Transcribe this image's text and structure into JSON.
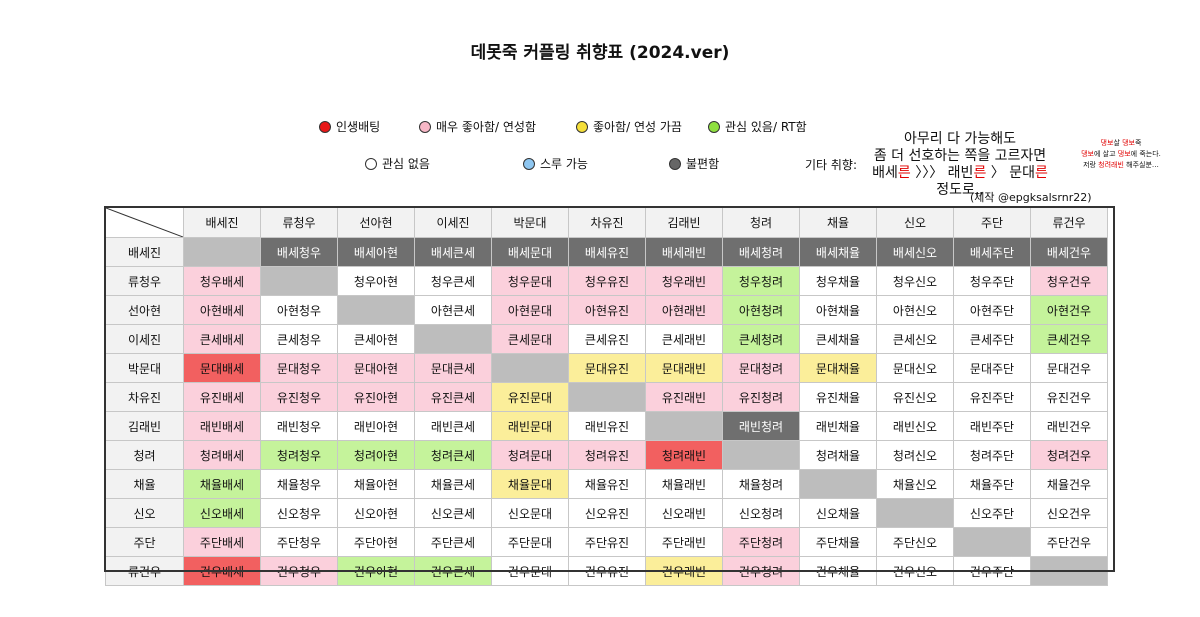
{
  "title": "데못죽 커플링 취향표 (2024.ver)",
  "legend": {
    "items": [
      {
        "label": "인생배팅",
        "color": "#e81818"
      },
      {
        "label": "매우 좋아함/ 연성함",
        "color": "#f7b7c6"
      },
      {
        "label": "좋아함/ 연성 가끔",
        "color": "#f5df3a"
      },
      {
        "label": "관심 있음/ RT함",
        "color": "#8fe040"
      },
      {
        "label": "관심 없음",
        "color": "#ffffff"
      },
      {
        "label": "스루 가능",
        "color": "#8ec6f0"
      },
      {
        "label": "불편함",
        "color": "#666666"
      }
    ]
  },
  "etc": {
    "label": "기타 취향:",
    "line1": "아무리 다 가능해도",
    "line2": "좀 더 선호하는 쪽을 고르자면",
    "line3a": "배세",
    "line3b": "른",
    "line3c": " 〉〉〉 래빈",
    "line3d": "른",
    "line3e": " 〉 문대",
    "line3f": "른",
    "line4": "정도로,,",
    "credit": "(제작 @epgksalsrnr22)"
  },
  "side_note": {
    "l1a": "댕보",
    "l1b": "살 ",
    "l1c": "댕보",
    "l1d": "죽",
    "l2a": "댕보",
    "l2b": "에 살고 ",
    "l2c": "댕보",
    "l2d": "에 죽는다.",
    "l3a": "저랑 ",
    "l3b": "청려래빈",
    "l3c": " 해주실분…"
  },
  "colors": {
    "red": "#f26060",
    "pink": "#fbd0dc",
    "yellow": "#fbee9a",
    "green": "#c5f39b",
    "darkgray": "#6f6f6f",
    "diag": "#bdbdbd",
    "white": "#ffffff"
  },
  "headers": [
    "배세진",
    "류청우",
    "선아현",
    "이세진",
    "박문대",
    "차유진",
    "김래빈",
    "청려",
    "채율",
    "신오",
    "주단",
    "류건우"
  ],
  "rows": [
    {
      "head": "배세진",
      "cells": [
        {
          "t": "",
          "c": "diag"
        },
        {
          "t": "배세청우",
          "c": "darkgray"
        },
        {
          "t": "배세아현",
          "c": "darkgray"
        },
        {
          "t": "배세큰세",
          "c": "darkgray"
        },
        {
          "t": "배세문대",
          "c": "darkgray"
        },
        {
          "t": "배세유진",
          "c": "darkgray"
        },
        {
          "t": "배세래빈",
          "c": "darkgray"
        },
        {
          "t": "배세청려",
          "c": "darkgray"
        },
        {
          "t": "배세채율",
          "c": "darkgray"
        },
        {
          "t": "배세신오",
          "c": "darkgray"
        },
        {
          "t": "배세주단",
          "c": "darkgray"
        },
        {
          "t": "배세건우",
          "c": "darkgray"
        }
      ]
    },
    {
      "head": "류청우",
      "cells": [
        {
          "t": "청우배세",
          "c": "pink"
        },
        {
          "t": "",
          "c": "diag"
        },
        {
          "t": "청우아현",
          "c": "white"
        },
        {
          "t": "청우큰세",
          "c": "white"
        },
        {
          "t": "청우문대",
          "c": "pink"
        },
        {
          "t": "청우유진",
          "c": "pink"
        },
        {
          "t": "청우래빈",
          "c": "pink"
        },
        {
          "t": "청우청려",
          "c": "green"
        },
        {
          "t": "청우채율",
          "c": "white"
        },
        {
          "t": "청우신오",
          "c": "white"
        },
        {
          "t": "청우주단",
          "c": "white"
        },
        {
          "t": "청우건우",
          "c": "pink"
        }
      ]
    },
    {
      "head": "선아현",
      "cells": [
        {
          "t": "아현배세",
          "c": "pink"
        },
        {
          "t": "아현청우",
          "c": "white"
        },
        {
          "t": "",
          "c": "diag"
        },
        {
          "t": "아현큰세",
          "c": "white"
        },
        {
          "t": "아현문대",
          "c": "pink"
        },
        {
          "t": "아현유진",
          "c": "pink"
        },
        {
          "t": "아현래빈",
          "c": "pink"
        },
        {
          "t": "아현청려",
          "c": "green"
        },
        {
          "t": "아현채율",
          "c": "white"
        },
        {
          "t": "아현신오",
          "c": "white"
        },
        {
          "t": "아현주단",
          "c": "white"
        },
        {
          "t": "아현건우",
          "c": "green"
        }
      ]
    },
    {
      "head": "이세진",
      "cells": [
        {
          "t": "큰세배세",
          "c": "pink"
        },
        {
          "t": "큰세청우",
          "c": "white"
        },
        {
          "t": "큰세아현",
          "c": "white"
        },
        {
          "t": "",
          "c": "diag"
        },
        {
          "t": "큰세문대",
          "c": "pink"
        },
        {
          "t": "큰세유진",
          "c": "white"
        },
        {
          "t": "큰세래빈",
          "c": "white"
        },
        {
          "t": "큰세청려",
          "c": "green"
        },
        {
          "t": "큰세채율",
          "c": "white"
        },
        {
          "t": "큰세신오",
          "c": "white"
        },
        {
          "t": "큰세주단",
          "c": "white"
        },
        {
          "t": "큰세건우",
          "c": "green"
        }
      ]
    },
    {
      "head": "박문대",
      "cells": [
        {
          "t": "문대배세",
          "c": "red"
        },
        {
          "t": "문대청우",
          "c": "pink"
        },
        {
          "t": "문대아현",
          "c": "pink"
        },
        {
          "t": "문대큰세",
          "c": "pink"
        },
        {
          "t": "",
          "c": "diag"
        },
        {
          "t": "문대유진",
          "c": "yellow"
        },
        {
          "t": "문대래빈",
          "c": "yellow"
        },
        {
          "t": "문대청려",
          "c": "pink"
        },
        {
          "t": "문대채율",
          "c": "yellow"
        },
        {
          "t": "문대신오",
          "c": "white"
        },
        {
          "t": "문대주단",
          "c": "white"
        },
        {
          "t": "문대건우",
          "c": "white"
        }
      ]
    },
    {
      "head": "차유진",
      "cells": [
        {
          "t": "유진배세",
          "c": "pink"
        },
        {
          "t": "유진청우",
          "c": "pink"
        },
        {
          "t": "유진아현",
          "c": "pink"
        },
        {
          "t": "유진큰세",
          "c": "pink"
        },
        {
          "t": "유진문대",
          "c": "yellow"
        },
        {
          "t": "",
          "c": "diag"
        },
        {
          "t": "유진래빈",
          "c": "pink"
        },
        {
          "t": "유진청려",
          "c": "pink"
        },
        {
          "t": "유진채율",
          "c": "white"
        },
        {
          "t": "유진신오",
          "c": "white"
        },
        {
          "t": "유진주단",
          "c": "white"
        },
        {
          "t": "유진건우",
          "c": "white"
        }
      ]
    },
    {
      "head": "김래빈",
      "cells": [
        {
          "t": "래빈배세",
          "c": "pink"
        },
        {
          "t": "래빈청우",
          "c": "white"
        },
        {
          "t": "래빈아현",
          "c": "white"
        },
        {
          "t": "래빈큰세",
          "c": "white"
        },
        {
          "t": "래빈문대",
          "c": "yellow"
        },
        {
          "t": "래빈유진",
          "c": "white"
        },
        {
          "t": "",
          "c": "diag"
        },
        {
          "t": "래빈청려",
          "c": "darkgray"
        },
        {
          "t": "래빈채율",
          "c": "white"
        },
        {
          "t": "래빈신오",
          "c": "white"
        },
        {
          "t": "래빈주단",
          "c": "white"
        },
        {
          "t": "래빈건우",
          "c": "white"
        }
      ]
    },
    {
      "head": "청려",
      "cells": [
        {
          "t": "청려배세",
          "c": "pink"
        },
        {
          "t": "청려청우",
          "c": "green"
        },
        {
          "t": "청려아현",
          "c": "green"
        },
        {
          "t": "청려큰세",
          "c": "green"
        },
        {
          "t": "청려문대",
          "c": "pink"
        },
        {
          "t": "청려유진",
          "c": "pink"
        },
        {
          "t": "청려래빈",
          "c": "red"
        },
        {
          "t": "",
          "c": "diag"
        },
        {
          "t": "청려채율",
          "c": "white"
        },
        {
          "t": "청려신오",
          "c": "white"
        },
        {
          "t": "청려주단",
          "c": "white"
        },
        {
          "t": "청려건우",
          "c": "pink"
        }
      ]
    },
    {
      "head": "채율",
      "cells": [
        {
          "t": "채율배세",
          "c": "green"
        },
        {
          "t": "채율청우",
          "c": "white"
        },
        {
          "t": "채율아현",
          "c": "white"
        },
        {
          "t": "채율큰세",
          "c": "white"
        },
        {
          "t": "채율문대",
          "c": "yellow"
        },
        {
          "t": "채율유진",
          "c": "white"
        },
        {
          "t": "채율래빈",
          "c": "white"
        },
        {
          "t": "채율청려",
          "c": "white"
        },
        {
          "t": "",
          "c": "diag"
        },
        {
          "t": "채율신오",
          "c": "white"
        },
        {
          "t": "채율주단",
          "c": "white"
        },
        {
          "t": "채율건우",
          "c": "white"
        }
      ]
    },
    {
      "head": "신오",
      "cells": [
        {
          "t": "신오배세",
          "c": "green"
        },
        {
          "t": "신오청우",
          "c": "white"
        },
        {
          "t": "신오아현",
          "c": "white"
        },
        {
          "t": "신오큰세",
          "c": "white"
        },
        {
          "t": "신오문대",
          "c": "white"
        },
        {
          "t": "신오유진",
          "c": "white"
        },
        {
          "t": "신오래빈",
          "c": "white"
        },
        {
          "t": "신오청려",
          "c": "white"
        },
        {
          "t": "신오채율",
          "c": "white"
        },
        {
          "t": "",
          "c": "diag"
        },
        {
          "t": "신오주단",
          "c": "white"
        },
        {
          "t": "신오건우",
          "c": "white"
        }
      ]
    },
    {
      "head": "주단",
      "cells": [
        {
          "t": "주단배세",
          "c": "pink"
        },
        {
          "t": "주단청우",
          "c": "white"
        },
        {
          "t": "주단아현",
          "c": "white"
        },
        {
          "t": "주단큰세",
          "c": "white"
        },
        {
          "t": "주단문대",
          "c": "white"
        },
        {
          "t": "주단유진",
          "c": "white"
        },
        {
          "t": "주단래빈",
          "c": "white"
        },
        {
          "t": "주단청려",
          "c": "pink"
        },
        {
          "t": "주단채율",
          "c": "white"
        },
        {
          "t": "주단신오",
          "c": "white"
        },
        {
          "t": "",
          "c": "diag"
        },
        {
          "t": "주단건우",
          "c": "white"
        }
      ]
    },
    {
      "head": "류건우",
      "cells": [
        {
          "t": "건우배세",
          "c": "red"
        },
        {
          "t": "건우청우",
          "c": "pink"
        },
        {
          "t": "건우아현",
          "c": "green"
        },
        {
          "t": "건우큰세",
          "c": "green"
        },
        {
          "t": "건우문대",
          "c": "white"
        },
        {
          "t": "건우유진",
          "c": "white"
        },
        {
          "t": "건우래빈",
          "c": "yellow"
        },
        {
          "t": "건우청려",
          "c": "pink"
        },
        {
          "t": "건우채율",
          "c": "white"
        },
        {
          "t": "건우신오",
          "c": "white"
        },
        {
          "t": "건우주단",
          "c": "white"
        },
        {
          "t": "",
          "c": "diag"
        }
      ]
    }
  ]
}
